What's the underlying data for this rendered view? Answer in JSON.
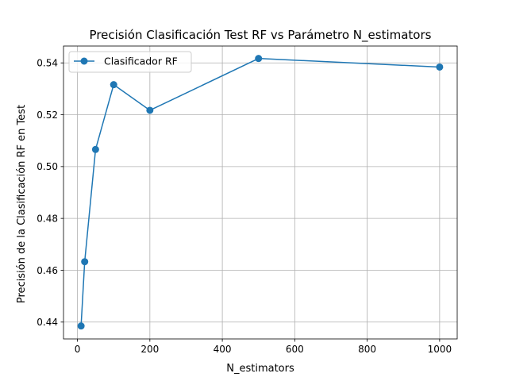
{
  "chart_data": {
    "type": "line",
    "title": "Precisión Clasificación Test RF vs Parámetro N_estimators",
    "xlabel": "N_estimators",
    "ylabel": "Precisión de la Clasificación RF en Test",
    "xlim": [
      -38.5,
      1048.5
    ],
    "ylim": [
      0.4335,
      0.5465
    ],
    "xticks": [
      0,
      200,
      400,
      600,
      800,
      1000
    ],
    "xtick_labels": [
      "0",
      "200",
      "400",
      "600",
      "800",
      "1000"
    ],
    "yticks": [
      0.44,
      0.46,
      0.48,
      0.5,
      0.52,
      0.54
    ],
    "ytick_labels": [
      "0.44",
      "0.46",
      "0.48",
      "0.50",
      "0.52",
      "0.54"
    ],
    "grid": true,
    "legend": "upper-left",
    "series": [
      {
        "name": "Clasificador RF",
        "color": "#1f77b4",
        "marker": "circle",
        "x": [
          10,
          20,
          50,
          100,
          200,
          500,
          1000
        ],
        "y": [
          0.4385,
          0.4633,
          0.5066,
          0.5316,
          0.5217,
          0.5417,
          0.5384
        ]
      }
    ]
  }
}
